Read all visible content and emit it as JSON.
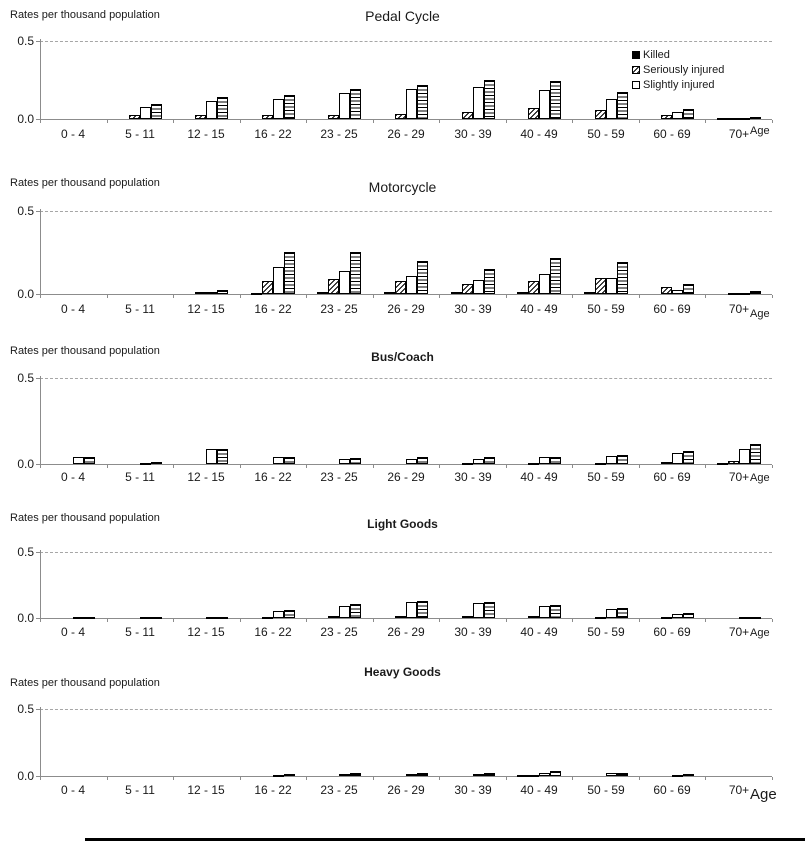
{
  "page": {
    "background": "#ffffff",
    "accent_color": "#000000",
    "axis_color": "#8c8c8c",
    "gridline_color": "#a6a6a6"
  },
  "shared": {
    "y_axis_note": "Rates per thousand population",
    "age_label": "Age",
    "y_tick_labels": [
      "0.5",
      "0.0"
    ],
    "categories": [
      "0 - 4",
      "5 - 11",
      "12 - 15",
      "16 - 22",
      "23 - 25",
      "26 - 29",
      "30 - 39",
      "40 - 49",
      "50 - 59",
      "60 - 69",
      "70+"
    ]
  },
  "legend": {
    "position": "top-right-of-first-chart",
    "entries": [
      {
        "label": "Killed",
        "pattern": "solid"
      },
      {
        "label": "Seriously injured",
        "pattern": "diagonal"
      },
      {
        "label": "Slightly injured",
        "pattern": "open"
      }
    ]
  },
  "chart_data": [
    {
      "type": "bar",
      "title": "Pedal Cycle",
      "title_style": "plain",
      "ylabel": "Rates per thousand population",
      "xlabel": "Age",
      "ylim": [
        0,
        0.5
      ],
      "grid": "dashed line at 0.5 only",
      "categories": [
        "0 - 4",
        "5 - 11",
        "12 - 15",
        "16 - 22",
        "23 - 25",
        "26 - 29",
        "30 - 39",
        "40 - 49",
        "50 - 59",
        "60 - 69",
        "70+"
      ],
      "series": [
        {
          "name": "Killed",
          "pattern": "solid",
          "values": [
            0,
            0,
            0,
            0,
            0,
            0,
            0,
            0,
            0,
            0,
            0.005
          ]
        },
        {
          "name": "Seriously injured",
          "pattern": "diagonal",
          "values": [
            0,
            0.025,
            0.025,
            0.027,
            0.027,
            0.035,
            0.042,
            0.07,
            0.06,
            0.025,
            0.006
          ]
        },
        {
          "name": "Slightly injured",
          "pattern": "open",
          "values": [
            0,
            0.075,
            0.115,
            0.13,
            0.165,
            0.195,
            0.205,
            0.185,
            0.125,
            0.046,
            0.006
          ]
        },
        {
          "name": "",
          "pattern": "hstripes",
          "values": [
            0,
            0.095,
            0.14,
            0.155,
            0.195,
            0.215,
            0.25,
            0.245,
            0.175,
            0.062,
            0.015
          ]
        }
      ]
    },
    {
      "type": "bar",
      "title": "Motorcycle",
      "title_style": "plain",
      "ylabel": "Rates per thousand population",
      "xlabel": "Age",
      "ylim": [
        0,
        0.5
      ],
      "grid": "dashed line at 0.5 only",
      "categories": [
        "0 - 4",
        "5 - 11",
        "12 - 15",
        "16 - 22",
        "23 - 25",
        "26 - 29",
        "30 - 39",
        "40 - 49",
        "50 - 59",
        "60 - 69",
        "70+"
      ],
      "series": [
        {
          "name": "Killed",
          "pattern": "solid",
          "values": [
            0,
            0,
            0.004,
            0.008,
            0.01,
            0.01,
            0.01,
            0.01,
            0.012,
            0.004,
            0.004
          ]
        },
        {
          "name": "Seriously injured",
          "pattern": "diagonal",
          "values": [
            0,
            0,
            0.012,
            0.08,
            0.09,
            0.08,
            0.06,
            0.08,
            0.095,
            0.043,
            0.007
          ]
        },
        {
          "name": "Slightly injured",
          "pattern": "open",
          "values": [
            0,
            0,
            0.012,
            0.165,
            0.14,
            0.11,
            0.085,
            0.12,
            0.095,
            0.027,
            0.007
          ]
        },
        {
          "name": "",
          "pattern": "hstripes",
          "values": [
            0,
            0,
            0.022,
            0.25,
            0.25,
            0.2,
            0.15,
            0.215,
            0.195,
            0.062,
            0.016
          ]
        }
      ]
    },
    {
      "type": "bar",
      "title": "Bus/Coach",
      "title_style": "bold",
      "ylabel": "Rates per thousand population",
      "xlabel": "Age",
      "ylim": [
        0,
        0.5
      ],
      "grid": "dashed line at 0.5 only",
      "categories": [
        "0 - 4",
        "5 - 11",
        "12 - 15",
        "16 - 22",
        "23 - 25",
        "26 - 29",
        "30 - 39",
        "40 - 49",
        "50 - 59",
        "60 - 69",
        "70+"
      ],
      "series": [
        {
          "name": "Killed",
          "pattern": "solid",
          "values": [
            0,
            0,
            0,
            0,
            0,
            0,
            0,
            0,
            0.004,
            0.004,
            0.006
          ]
        },
        {
          "name": "Seriously injured",
          "pattern": "diagonal",
          "values": [
            0.003,
            0.002,
            0.004,
            0.004,
            0.004,
            0.004,
            0.005,
            0.005,
            0.008,
            0.012,
            0.02
          ]
        },
        {
          "name": "Slightly injured",
          "pattern": "open",
          "values": [
            0.038,
            0.008,
            0.088,
            0.04,
            0.028,
            0.03,
            0.03,
            0.038,
            0.045,
            0.065,
            0.09
          ]
        },
        {
          "name": "",
          "pattern": "hstripes",
          "values": [
            0.04,
            0.01,
            0.09,
            0.042,
            0.032,
            0.038,
            0.038,
            0.042,
            0.05,
            0.075,
            0.115
          ]
        }
      ]
    },
    {
      "type": "bar",
      "title": "Light Goods",
      "title_style": "bold",
      "ylabel": "Rates per thousand population",
      "xlabel": "Age",
      "ylim": [
        0,
        0.5
      ],
      "grid": "dashed line at 0.5 only",
      "categories": [
        "0 - 4",
        "5 - 11",
        "12 - 15",
        "16 - 22",
        "23 - 25",
        "26 - 29",
        "30 - 39",
        "40 - 49",
        "50 - 59",
        "60 - 69",
        "70+"
      ],
      "series": [
        {
          "name": "Killed",
          "pattern": "solid",
          "values": [
            0.003,
            0.003,
            0.003,
            0.004,
            0.004,
            0.004,
            0.004,
            0.004,
            0.004,
            0.003,
            0.003
          ]
        },
        {
          "name": "Seriously injured",
          "pattern": "diagonal",
          "values": [
            0.004,
            0.004,
            0.004,
            0.01,
            0.012,
            0.015,
            0.012,
            0.012,
            0.01,
            0.008,
            0.004
          ]
        },
        {
          "name": "Slightly injured",
          "pattern": "open",
          "values": [
            0.006,
            0.006,
            0.006,
            0.05,
            0.09,
            0.12,
            0.11,
            0.09,
            0.065,
            0.028,
            0.006
          ]
        },
        {
          "name": "",
          "pattern": "hstripes",
          "values": [
            0.01,
            0.01,
            0.01,
            0.062,
            0.105,
            0.132,
            0.122,
            0.1,
            0.078,
            0.04,
            0.01
          ]
        }
      ]
    },
    {
      "type": "bar",
      "title": "Heavy Goods",
      "title_style": "bold",
      "ylabel": "Rates per thousand population",
      "xlabel": "Age",
      "ylim": [
        0,
        0.5
      ],
      "grid": "dashed line at 0.5 only",
      "categories": [
        "0 - 4",
        "5 - 11",
        "12 - 15",
        "16 - 22",
        "23 - 25",
        "26 - 29",
        "30 - 39",
        "40 - 49",
        "50 - 59",
        "60 - 69",
        "70+"
      ],
      "series": [
        {
          "name": "Killed",
          "pattern": "solid",
          "values": [
            0,
            0,
            0,
            0.004,
            0.004,
            0.004,
            0.004,
            0.006,
            0.004,
            0.004,
            0
          ]
        },
        {
          "name": "Seriously injured",
          "pattern": "diagonal",
          "values": [
            0,
            0,
            0,
            0.004,
            0.005,
            0.005,
            0.005,
            0.006,
            0.005,
            0.004,
            0
          ]
        },
        {
          "name": "Slightly injured",
          "pattern": "open",
          "values": [
            0,
            0,
            0,
            0.008,
            0.016,
            0.016,
            0.016,
            0.026,
            0.02,
            0.008,
            0
          ]
        },
        {
          "name": "",
          "pattern": "hstripes",
          "values": [
            0,
            0,
            0,
            0.012,
            0.02,
            0.02,
            0.02,
            0.034,
            0.026,
            0.012,
            0
          ]
        }
      ]
    }
  ]
}
